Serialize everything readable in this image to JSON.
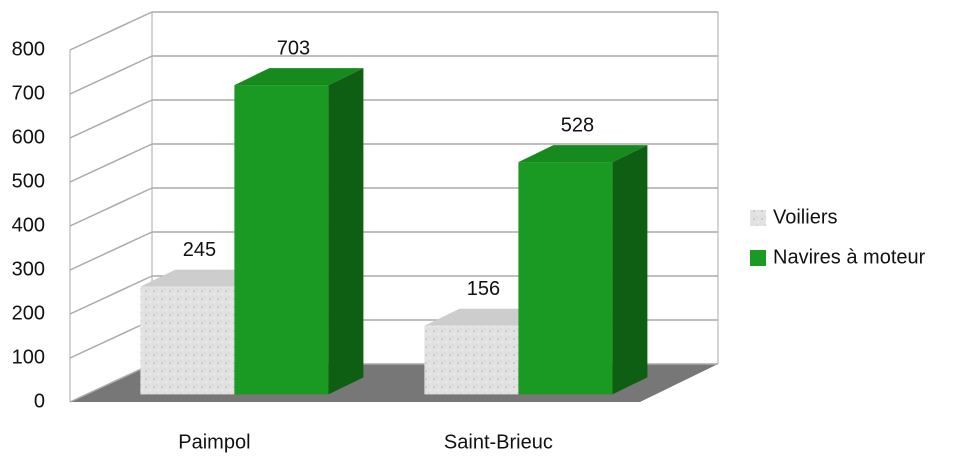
{
  "chart_data": {
    "type": "bar3d",
    "categories": [
      "Paimpol",
      "Saint-Brieuc"
    ],
    "series": [
      {
        "name": "Voiliers",
        "color": "#dcdcdc",
        "values": [
          245,
          156
        ]
      },
      {
        "name": "Navires à moteur",
        "color": "#1a9a22",
        "values": [
          703,
          528
        ]
      }
    ],
    "ylim": [
      0,
      800
    ],
    "yticks": [
      0,
      100,
      200,
      300,
      400,
      500,
      600,
      700,
      800
    ],
    "grid": true,
    "legend": "right"
  }
}
